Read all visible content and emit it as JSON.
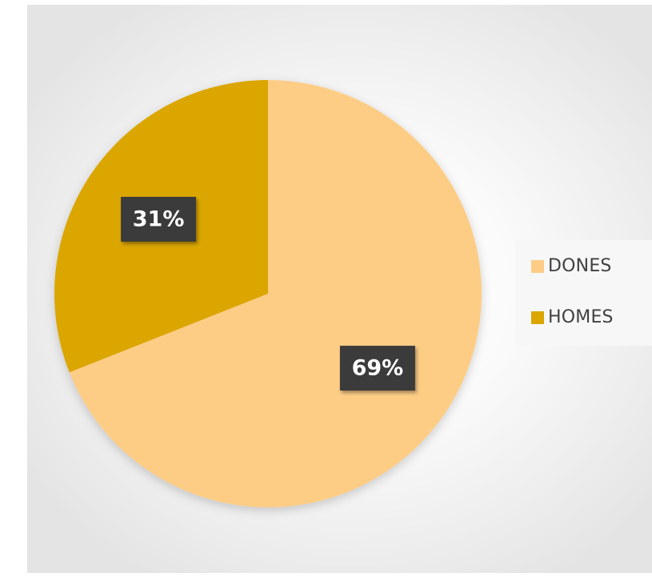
{
  "chart_data": {
    "type": "pie",
    "title": "",
    "slices": [
      {
        "name": "DONES",
        "value": 69,
        "label": "69%",
        "color": "#FDCD86"
      },
      {
        "name": "HOMES",
        "value": 31,
        "label": "31%",
        "color": "#DBA600"
      }
    ],
    "legend_position": "right",
    "data_label_background": "#3A3A3A"
  },
  "legend": {
    "items": [
      {
        "label": "DONES",
        "color": "#FDCD86"
      },
      {
        "label": "HOMES",
        "color": "#DBA600"
      }
    ]
  }
}
